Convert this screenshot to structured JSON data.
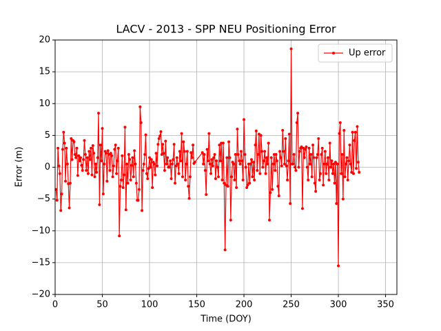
{
  "chart_data": {
    "type": "line",
    "title": "LACV - 2013 - SPP NEU Positioning Error",
    "xlabel": "Time (DOY)",
    "ylabel": "Error (m)",
    "xlim": [
      0,
      362
    ],
    "ylim": [
      -20,
      20
    ],
    "xticks": [
      0,
      50,
      100,
      150,
      200,
      250,
      300,
      350
    ],
    "yticks": [
      {
        "value": -20,
        "label": "−20"
      },
      {
        "value": -15,
        "label": "−15"
      },
      {
        "value": -10,
        "label": "−10"
      },
      {
        "value": -5,
        "label": "−5"
      },
      0,
      5,
      10,
      15,
      20
    ],
    "grid": true,
    "legend": "upper right",
    "x": [
      1,
      2,
      3,
      4,
      5,
      6,
      7,
      8,
      9,
      10,
      11,
      12,
      13,
      14,
      15,
      16,
      17,
      18,
      19,
      20,
      21,
      22,
      23,
      24,
      25,
      26,
      27,
      28,
      29,
      30,
      31,
      32,
      33,
      34,
      35,
      36,
      37,
      38,
      39,
      40,
      41,
      42,
      43,
      44,
      45,
      46,
      47,
      48,
      49,
      50,
      51,
      52,
      53,
      54,
      55,
      56,
      57,
      58,
      59,
      60,
      61,
      62,
      63,
      64,
      65,
      66,
      67,
      68,
      69,
      70,
      71,
      72,
      73,
      74,
      75,
      76,
      77,
      78,
      79,
      80,
      81,
      82,
      83,
      84,
      85,
      86,
      87,
      88,
      89,
      90,
      91,
      92,
      93,
      94,
      95,
      96,
      97,
      98,
      99,
      100,
      101,
      102,
      103,
      104,
      105,
      106,
      107,
      108,
      109,
      110,
      111,
      112,
      113,
      114,
      115,
      116,
      117,
      118,
      119,
      120,
      121,
      122,
      123,
      124,
      125,
      126,
      127,
      128,
      129,
      130,
      131,
      132,
      133,
      134,
      135,
      136,
      137,
      138,
      139,
      140,
      141,
      142,
      143,
      144,
      145,
      146,
      147,
      148,
      156,
      157,
      158,
      159,
      160,
      161,
      162,
      163,
      164,
      165,
      166,
      167,
      168,
      169,
      170,
      171,
      172,
      173,
      174,
      175,
      176,
      177,
      178,
      179,
      180,
      181,
      182,
      183,
      184,
      185,
      186,
      187,
      188,
      189,
      190,
      191,
      192,
      193,
      194,
      195,
      196,
      197,
      198,
      199,
      200,
      201,
      202,
      203,
      204,
      205,
      206,
      207,
      208,
      209,
      210,
      211,
      212,
      213,
      214,
      215,
      216,
      217,
      218,
      219,
      220,
      221,
      222,
      223,
      224,
      225,
      226,
      227,
      228,
      229,
      230,
      231,
      232,
      233,
      234,
      235,
      236,
      237,
      238,
      239,
      240,
      241,
      242,
      243,
      244,
      245,
      246,
      247,
      248,
      249,
      250,
      251,
      252,
      253,
      254,
      255,
      256,
      257,
      258,
      259,
      260,
      261,
      262,
      263,
      264,
      265,
      266,
      267,
      268,
      269,
      270,
      271,
      272,
      273,
      274,
      275,
      276,
      277,
      278,
      279,
      280,
      281,
      282,
      283,
      284,
      285,
      286,
      287,
      288,
      289,
      290,
      291,
      292,
      293,
      294,
      295,
      296,
      297,
      298,
      299,
      300,
      301,
      302,
      303,
      304,
      305,
      306,
      307,
      308,
      309,
      310,
      311,
      312,
      313,
      314,
      315,
      316,
      317,
      318,
      319,
      320,
      321,
      322
    ],
    "series": [
      {
        "name": "Up error",
        "color": "#ff0000",
        "values": [
          -3.5,
          -5.2,
          3.0,
          0.2,
          -1.0,
          -6.8,
          -4.2,
          2.8,
          5.5,
          3.8,
          -2.2,
          3.0,
          0.5,
          -2.6,
          -6.4,
          -2.5,
          4.5,
          1.2,
          4.2,
          4.0,
          2.0,
          1.5,
          3.0,
          -1.3,
          1.8,
          1.0,
          1.5,
          0.3,
          -0.5,
          1.2,
          4.2,
          2.0,
          -0.5,
          1.5,
          -1.0,
          2.5,
          1.2,
          3.0,
          -1.2,
          3.4,
          2.2,
          -1.5,
          0.5,
          -0.8,
          1.5,
          8.5,
          -5.9,
          3.5,
          1.0,
          6.1,
          -4.2,
          0.5,
          2.5,
          2.2,
          -2.2,
          2.6,
          2.0,
          -0.5,
          2.2,
          1.8,
          -1.5,
          0.2,
          2.8,
          3.5,
          -1.0,
          1.0,
          3.0,
          -10.8,
          -3.0,
          -2.0,
          1.8,
          -3.2,
          -1.2,
          6.3,
          -6.7,
          0.5,
          -2.5,
          2.0,
          1.2,
          -2.0,
          0.3,
          1.5,
          -1.5,
          2.6,
          0.5,
          -2.5,
          -5.2,
          -5.2,
          -3.5,
          9.5,
          7.0,
          -6.8,
          -0.5,
          0.5,
          2.0,
          5.1,
          -1.0,
          -1.8,
          -0.2,
          1.5,
          0.0,
          1.2,
          -3.2,
          0.8,
          0.5,
          -1.2,
          2.2,
          0.2,
          3.6,
          4.5,
          4.9,
          5.6,
          2.0,
          3.6,
          2.2,
          -0.5,
          4.1,
          0.5,
          1.5,
          0.0,
          0.0,
          1.0,
          -1.8,
          0.5,
          1.2,
          3.6,
          -2.5,
          0.2,
          1.5,
          0.5,
          -1.0,
          2.5,
          1.0,
          5.3,
          -1.5,
          4.0,
          2.5,
          -2.0,
          0.5,
          2.5,
          -3.0,
          -4.9,
          -1.5,
          2.3,
          1.5,
          3.5,
          0.6,
          0.8,
          2.3,
          0.5,
          2.0,
          -0.5,
          -4.3,
          2.8,
          1.0,
          5.3,
          0.5,
          -1.0,
          1.2,
          0.2,
          1.5,
          2.0,
          -1.8,
          1.0,
          0.0,
          -1.5,
          3.5,
          1.0,
          3.8,
          -2.0,
          3.8,
          -2.5,
          -13.0,
          -2.8,
          1.5,
          -3.0,
          4.0,
          1.5,
          -8.3,
          -1.5,
          0.8,
          0.5,
          -2.0,
          2.0,
          -3.2,
          6.0,
          2.0,
          1.0,
          0.5,
          2.5,
          1.0,
          -2.0,
          7.5,
          2.0,
          0.0,
          -3.2,
          -2.8,
          0.5,
          -2.5,
          0.5,
          1.2,
          -1.5,
          0.8,
          -2.0,
          3.5,
          5.7,
          -0.5,
          2.0,
          5.2,
          -1.0,
          5.0,
          2.5,
          0.0,
          1.0,
          2.5,
          -1.0,
          1.5,
          0.5,
          3.8,
          -8.3,
          -4.0,
          1.5,
          -3.5,
          0.5,
          2.0,
          -0.5,
          2.0,
          1.0,
          -3.0,
          -4.5,
          2.5,
          1.5,
          0.2,
          5.8,
          2.5,
          0.5,
          4.5,
          0.2,
          -2.0,
          1.0,
          5.2,
          -5.7,
          18.6,
          0.5,
          0.5,
          2.0,
          0.0,
          -0.5,
          7.0,
          8.5,
          0.0,
          2.5,
          3.0,
          3.2,
          -6.5,
          3.0,
          1.5,
          2.8,
          3.2,
          0.0,
          -2.0,
          3.0,
          0.5,
          2.0,
          -1.5,
          3.5,
          1.5,
          -2.5,
          -3.8,
          1.5,
          2.0,
          4.5,
          -2.0,
          -1.0,
          2.0,
          3.0,
          -2.8,
          0.5,
          2.5,
          -1.0,
          0.5,
          1.5,
          -2.0,
          3.8,
          0.0,
          1.0,
          -1.0,
          0.5,
          -2.5,
          0.8,
          -5.7,
          0.5,
          -15.5,
          5.3,
          7.0,
          -1.0,
          2.0,
          -5.0,
          5.8,
          -1.5,
          0.5,
          1.5,
          -2.0,
          1.0,
          3.5,
          0.5,
          -0.8,
          5.5,
          -1.0,
          4.2,
          5.5,
          -0.2,
          6.4,
          0.8,
          -0.8
        ]
      }
    ]
  }
}
